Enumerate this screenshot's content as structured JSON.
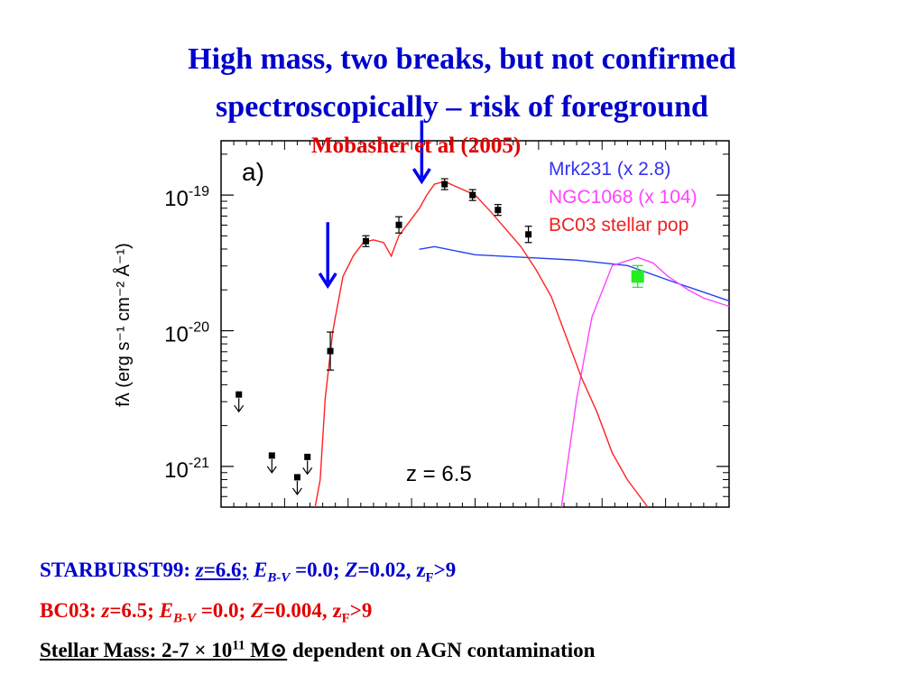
{
  "title": {
    "line1": "High mass, two breaks, but not confirmed",
    "line2": "spectroscopically – risk of foreground"
  },
  "credit": "Mobasher et al (2005)",
  "chart_data": {
    "type": "line",
    "panel_label": "a)",
    "annotation": "z = 6.5",
    "ylabel": "fλ (erg s⁻¹ cm⁻² Å⁻¹)",
    "yscale": "log",
    "ylim_log10": [
      -21.3,
      -18.6
    ],
    "yticks": [
      {
        "label": "10",
        "exp": "-19",
        "log10": -19
      },
      {
        "label": "10",
        "exp": "-20",
        "log10": -20
      },
      {
        "label": "10",
        "exp": "-21",
        "log10": -21
      }
    ],
    "xlim": [
      0,
      100
    ],
    "colors": {
      "mrk231": "#2244ee",
      "ngc1068": "#ff44ff",
      "bc03": "#ff2222",
      "points": "#000000",
      "irac": "#22ee22",
      "arrows": "#0000ee"
    },
    "legend": {
      "position": "top-right",
      "entries": [
        {
          "text": "Mrk231 (x 2.8)",
          "color": "#3333ee"
        },
        {
          "text": "NGC1068 (x 104)",
          "color": "#ff44ff"
        },
        {
          "text": "BC03 stellar pop",
          "color": "#ee2222"
        }
      ]
    },
    "series": [
      {
        "name": "Mrk231 (x 2.8)",
        "color": "#2244ee",
        "points": [
          [
            39,
            -19.4
          ],
          [
            42,
            -19.38
          ],
          [
            50,
            -19.44
          ],
          [
            60,
            -19.46
          ],
          [
            70,
            -19.48
          ],
          [
            80,
            -19.52
          ],
          [
            89,
            -19.64
          ],
          [
            100,
            -19.78
          ]
        ]
      },
      {
        "name": "NGC1068 (x 104)",
        "color": "#ff44ff",
        "points": [
          [
            67,
            -21.3
          ],
          [
            70,
            -20.5
          ],
          [
            73,
            -19.9
          ],
          [
            77,
            -19.52
          ],
          [
            82,
            -19.46
          ],
          [
            85,
            -19.5
          ],
          [
            88,
            -19.6
          ],
          [
            92,
            -19.7
          ],
          [
            95,
            -19.76
          ],
          [
            100,
            -19.82
          ]
        ]
      },
      {
        "name": "BC03 stellar pop",
        "color": "#ff2222",
        "points": [
          [
            18.5,
            -21.3
          ],
          [
            19.5,
            -21.1
          ],
          [
            20.5,
            -20.5
          ],
          [
            22,
            -20.0
          ],
          [
            24,
            -19.6
          ],
          [
            26,
            -19.45
          ],
          [
            28,
            -19.35
          ],
          [
            30,
            -19.33
          ],
          [
            32,
            -19.35
          ],
          [
            33.5,
            -19.45
          ],
          [
            35,
            -19.3
          ],
          [
            37,
            -19.2
          ],
          [
            39,
            -19.1
          ],
          [
            40.5,
            -19.0
          ],
          [
            42,
            -18.92
          ],
          [
            44,
            -18.9
          ],
          [
            47,
            -18.95
          ],
          [
            50,
            -19.0
          ],
          [
            53,
            -19.12
          ],
          [
            56,
            -19.25
          ],
          [
            59,
            -19.38
          ],
          [
            62,
            -19.55
          ],
          [
            65,
            -19.75
          ],
          [
            68,
            -20.05
          ],
          [
            71,
            -20.35
          ],
          [
            74,
            -20.6
          ],
          [
            77,
            -20.9
          ],
          [
            80,
            -21.1
          ],
          [
            82,
            -21.2
          ],
          [
            84,
            -21.3
          ]
        ]
      }
    ],
    "photometry": [
      {
        "x": 21.5,
        "y": -20.15,
        "err": 0.14
      },
      {
        "x": 28.5,
        "y": -19.34,
        "err": 0.04
      },
      {
        "x": 35,
        "y": -19.22,
        "err": 0.06
      },
      {
        "x": 44,
        "y": -18.92,
        "err": 0.04
      },
      {
        "x": 49.5,
        "y": -19.0,
        "err": 0.04
      },
      {
        "x": 54.5,
        "y": -19.11,
        "err": 0.04
      },
      {
        "x": 60.5,
        "y": -19.29,
        "err": 0.06
      }
    ],
    "upper_limits": [
      {
        "x": 3.5,
        "y": -20.47
      },
      {
        "x": 10,
        "y": -20.92
      },
      {
        "x": 15,
        "y": -21.08
      },
      {
        "x": 17,
        "y": -20.93
      }
    ],
    "irac_point": {
      "x": 82,
      "y": -19.6,
      "err": 0.08
    },
    "break_arrows": [
      {
        "x": 21,
        "y_from": -19.2,
        "y_to": -19.67
      },
      {
        "x": 39.5,
        "y_from": -18.45,
        "y_to": -18.9
      }
    ]
  },
  "footer": {
    "line1": {
      "a": "STARBURST99: ",
      "z": "z",
      "b": "=6.6;",
      "c": "  ",
      "e": "E",
      "esub": "B-V",
      "d": " =0.0; ",
      "zz": "Z",
      "f": "=0.02, z",
      "fsub": "F",
      "g": ">9"
    },
    "line2": {
      "a": "BC03: ",
      "z": "z",
      "b": "=6.5;  ",
      "e": "E",
      "esub": "B-V",
      "d": " =0.0; ",
      "zz": "Z",
      "f": "=0.004, z",
      "fsub": "F",
      "g": ">9"
    },
    "line3": {
      "a": "Stellar Mass: 2-7 × 10",
      "exp": "11",
      "b": " M",
      "sun": "⊙",
      "c": " dependent on AGN contamination"
    }
  }
}
